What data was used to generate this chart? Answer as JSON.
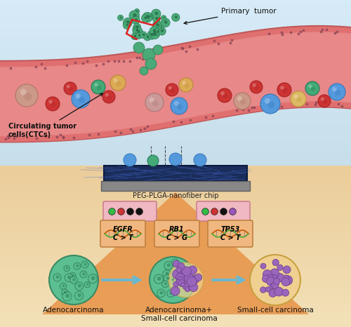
{
  "fig_width": 5.0,
  "fig_height": 4.66,
  "dpi": 100,
  "labels": {
    "primary_tumor": "Primary  tumor",
    "ctc": "Circulating tumor\ncells(CTCs)",
    "chip": "PEG-PLGA-nanofiber chip",
    "egfr": "EGFR\nC > T",
    "rb1": "RB1\nC > G",
    "tp53": "TP53\nC > T",
    "adeno": "Adenocarcinoma",
    "mixed": "Adenocarcinoma+\nSmall-cell carcinoma",
    "small": "Small-cell carcinoma"
  },
  "dot_panel1": [
    "#33bb44",
    "#cc3333",
    "#111111",
    "#111111"
  ],
  "dot_panel2": [
    "#33bb44",
    "#cc3333",
    "#111111",
    "#9955bb"
  ]
}
